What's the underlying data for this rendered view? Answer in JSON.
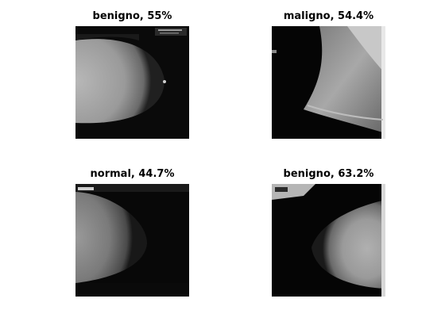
{
  "panels": [
    {
      "title": "benigno, 55%"
    },
    {
      "title": "maligno, 54.4%"
    },
    {
      "title": "normal, 44.7%"
    },
    {
      "title": "benigno, 63.2%"
    }
  ]
}
